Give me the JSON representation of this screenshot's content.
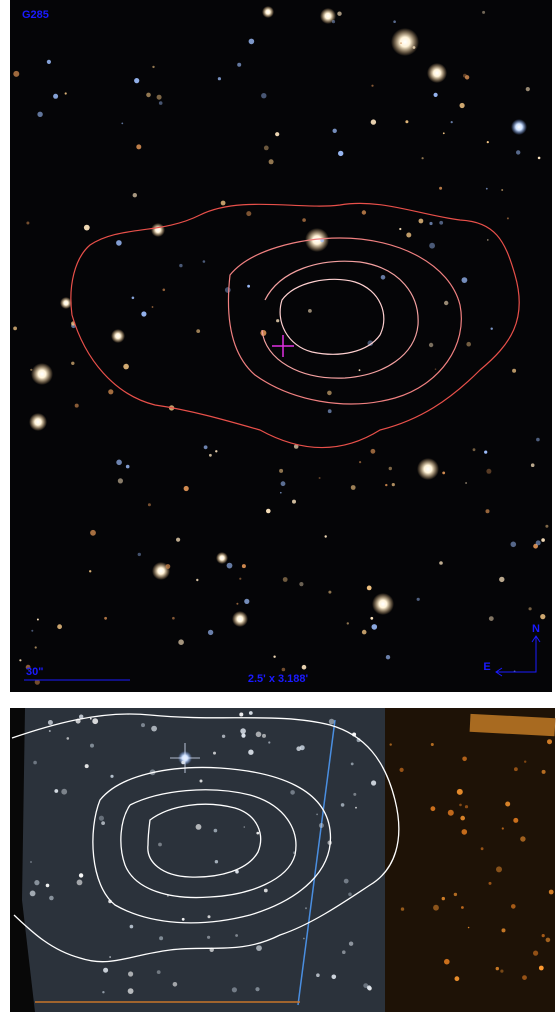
{
  "top_panel": {
    "label": "G285",
    "scale_bar": "30\"",
    "field_size": "2.5' x 3.188'",
    "compass": {
      "north": "N",
      "east": "E"
    }
  }
}
